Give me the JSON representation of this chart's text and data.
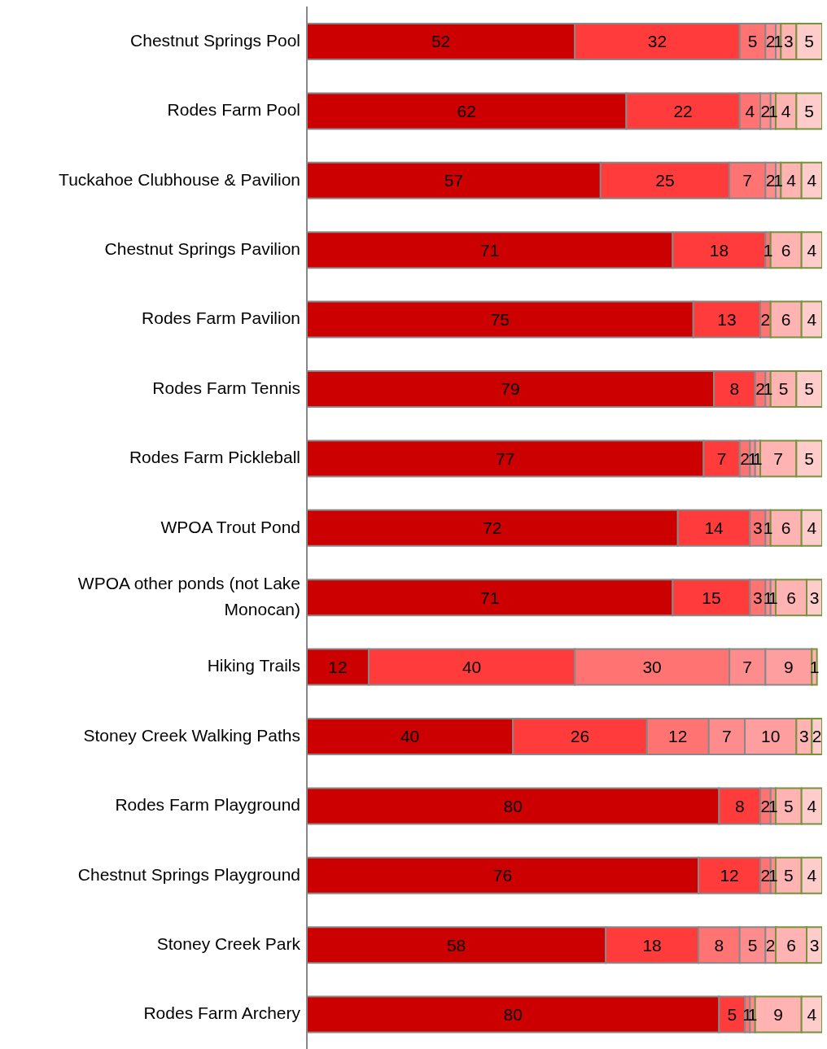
{
  "chart_data": {
    "type": "bar",
    "orientation": "horizontal",
    "stacked": true,
    "data_labels": true,
    "tick_labels": "y",
    "xlim": [
      0,
      100
    ],
    "categories": [
      "Chestnut Springs Pool",
      "Rodes Farm Pool",
      "Tuckahoe Clubhouse & Pavilion",
      "Chestnut Springs Pavilion",
      "Rodes Farm Pavilion",
      "Rodes Farm Tennis",
      "Rodes Farm Pickleball",
      "WPOA Trout Pond",
      "WPOA other ponds (not Lake Monocan)",
      "Hiking Trails",
      "Stoney Creek Walking Paths",
      "Rodes Farm Playground",
      "Chestnut Springs Playground",
      "Stoney Creek Park",
      "Rodes Farm Archery"
    ],
    "series": [
      {
        "color": "#cc0000",
        "values": [
          52,
          62,
          57,
          71,
          75,
          79,
          77,
          72,
          71,
          12,
          40,
          80,
          76,
          58,
          80
        ]
      },
      {
        "color": "#ff3b3b",
        "values": [
          32,
          22,
          25,
          18,
          13,
          8,
          7,
          14,
          15,
          40,
          26,
          8,
          12,
          18,
          5
        ]
      },
      {
        "color": "#ff7373",
        "values": [
          5,
          4,
          7,
          1,
          2,
          2,
          2,
          3,
          3,
          30,
          12,
          2,
          2,
          8,
          1
        ]
      },
      {
        "color": "#ff8c8c",
        "values": [
          2,
          2,
          2,
          null,
          null,
          1,
          1,
          1,
          1,
          7,
          7,
          1,
          1,
          5,
          1
        ]
      },
      {
        "color": "#ff9e9e",
        "values": [
          1,
          1,
          1,
          null,
          null,
          null,
          1,
          null,
          1,
          9,
          10,
          null,
          null,
          2,
          null
        ]
      },
      {
        "color": "#ffb3b3",
        "values": [
          3,
          4,
          4,
          6,
          6,
          5,
          7,
          6,
          6,
          1,
          3,
          5,
          5,
          6,
          9
        ]
      },
      {
        "color": "#ffcccc",
        "values": [
          5,
          5,
          4,
          4,
          4,
          5,
          5,
          4,
          3,
          null,
          2,
          4,
          4,
          3,
          4
        ]
      }
    ]
  }
}
